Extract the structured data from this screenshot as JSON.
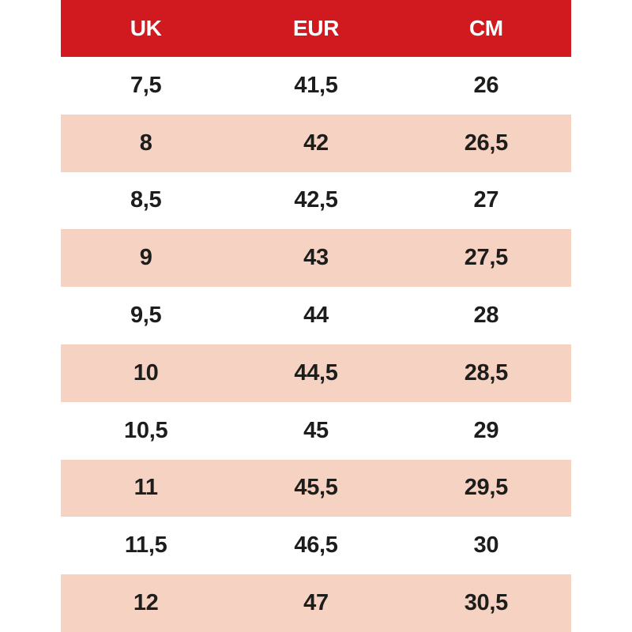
{
  "table": {
    "title": "shoe-size-conversion",
    "columns": [
      {
        "key": "uk",
        "label": "UK"
      },
      {
        "key": "eur",
        "label": "EUR"
      },
      {
        "key": "cm",
        "label": "CM"
      }
    ],
    "rows": [
      {
        "uk": "7,5",
        "eur": "41,5",
        "cm": "26"
      },
      {
        "uk": "8",
        "eur": "42",
        "cm": "26,5"
      },
      {
        "uk": "8,5",
        "eur": "42,5",
        "cm": "27"
      },
      {
        "uk": "9",
        "eur": "43",
        "cm": "27,5"
      },
      {
        "uk": "9,5",
        "eur": "44",
        "cm": "28"
      },
      {
        "uk": "10",
        "eur": "44,5",
        "cm": "28,5"
      },
      {
        "uk": "10,5",
        "eur": "45",
        "cm": "29"
      },
      {
        "uk": "11",
        "eur": "45,5",
        "cm": "29,5"
      },
      {
        "uk": "11,5",
        "eur": "46,5",
        "cm": "30"
      },
      {
        "uk": "12",
        "eur": "47",
        "cm": "30,5"
      }
    ]
  },
  "colors": {
    "header_bg": "#d01a20",
    "header_text": "#ffffff",
    "row_bg": "#ffffff",
    "row_alt_bg": "#f5d2c2",
    "cell_text": "#1d1d1b"
  }
}
